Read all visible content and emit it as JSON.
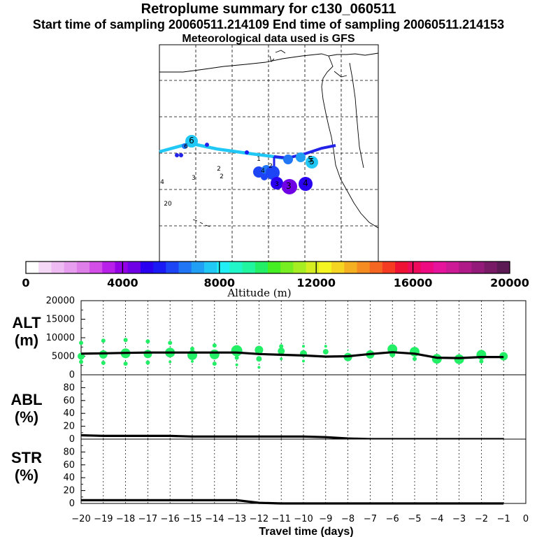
{
  "header": {
    "title": "Retroplume summary for c130_060511",
    "sampling": "Start time of sampling 20060511.214109     End time of sampling 20060511.214153",
    "met": "Meteorological data used is GFS"
  },
  "colors": {
    "curve": "#000000",
    "dots": "#22ee66",
    "track_light": "#22c8f5",
    "track_dark": "#2222e8"
  },
  "map": {
    "day_markers": [
      {
        "label": "1"
      },
      {
        "label": "2"
      },
      {
        "label": "2"
      },
      {
        "label": "3"
      },
      {
        "label": "3"
      },
      {
        "label": "4"
      },
      {
        "label": "4"
      },
      {
        "label": "5"
      },
      {
        "label": "6"
      },
      {
        "label": "6"
      },
      {
        "label": "20"
      },
      {
        "label": "4"
      },
      {
        "label": "3"
      },
      {
        "label": "2"
      },
      {
        "label": "5"
      }
    ]
  },
  "colorbar": {
    "label": "Altitude (m)",
    "ticks": [
      "0",
      "4000",
      "8000",
      "12000",
      "16000",
      "20000"
    ],
    "range": [
      0,
      20000
    ],
    "colors": [
      "#ffffff",
      "#f4d8f6",
      "#eebcf2",
      "#e79eee",
      "#de7ee9",
      "#d24ee6",
      "#b81fe8",
      "#9300e6",
      "#6f00e6",
      "#2a00f0",
      "#1a1af5",
      "#1e45f5",
      "#2076f5",
      "#219ff5",
      "#22c8f5",
      "#22eef5",
      "#22f5c8",
      "#22f5a0",
      "#22ee66",
      "#44ee22",
      "#77ee22",
      "#a6ee22",
      "#d4ee22",
      "#f5f522",
      "#f5d422",
      "#f5b022",
      "#f58c22",
      "#f56622",
      "#f53b22",
      "#ee1133",
      "#ee0a5a",
      "#ee0a80",
      "#e6139c",
      "#cc1a96",
      "#b01a88",
      "#931a78",
      "#781a66",
      "#5c1a55"
    ]
  },
  "chart_data": [
    {
      "type": "line",
      "name": "ALT",
      "ylabel_line1": "ALT",
      "ylabel_line2": "(m)",
      "ylim": [
        0,
        20000
      ],
      "yticks": [
        "0",
        "5000",
        "10000",
        "15000",
        "20000"
      ],
      "x": [
        -20,
        -19,
        -18,
        -17,
        -16,
        -15,
        -14,
        -13,
        -12,
        -11,
        -10,
        -9,
        -8,
        -7,
        -6,
        -5,
        -4,
        -3,
        -2,
        -1
      ],
      "values": [
        5700,
        5800,
        5900,
        6000,
        6000,
        6000,
        6000,
        6000,
        5600,
        5400,
        5200,
        4900,
        5000,
        5600,
        6100,
        5700,
        4600,
        4500,
        4800,
        4800
      ],
      "dots": [
        {
          "x": -20,
          "y": 5000,
          "r": 5
        },
        {
          "x": -20,
          "y": 8600,
          "r": 3
        },
        {
          "x": -20,
          "y": 3500,
          "r": 3
        },
        {
          "x": -19,
          "y": 5500,
          "r": 6
        },
        {
          "x": -19,
          "y": 9200,
          "r": 3
        },
        {
          "x": -19,
          "y": 3200,
          "r": 3
        },
        {
          "x": -18,
          "y": 5800,
          "r": 7
        },
        {
          "x": -18,
          "y": 9400,
          "r": 3
        },
        {
          "x": -18,
          "y": 3000,
          "r": 3
        },
        {
          "x": -17,
          "y": 5600,
          "r": 6
        },
        {
          "x": -17,
          "y": 9000,
          "r": 3
        },
        {
          "x": -17,
          "y": 3300,
          "r": 3
        },
        {
          "x": -16,
          "y": 6000,
          "r": 7
        },
        {
          "x": -16,
          "y": 8600,
          "r": 3
        },
        {
          "x": -16,
          "y": 3500,
          "r": 2
        },
        {
          "x": -15,
          "y": 5300,
          "r": 7
        },
        {
          "x": -15,
          "y": 7000,
          "r": 3
        },
        {
          "x": -15,
          "y": 3600,
          "r": 2
        },
        {
          "x": -14,
          "y": 5500,
          "r": 7
        },
        {
          "x": -14,
          "y": 7900,
          "r": 3
        },
        {
          "x": -14,
          "y": 3000,
          "r": 3
        },
        {
          "x": -13,
          "y": 6500,
          "r": 8
        },
        {
          "x": -13,
          "y": 4600,
          "r": 3
        },
        {
          "x": -13,
          "y": 2700,
          "r": 2
        },
        {
          "x": -12,
          "y": 6700,
          "r": 6
        },
        {
          "x": -12,
          "y": 4300,
          "r": 4
        },
        {
          "x": -12,
          "y": 2000,
          "r": 2
        },
        {
          "x": -11,
          "y": 6400,
          "r": 5
        },
        {
          "x": -11,
          "y": 7700,
          "r": 3
        },
        {
          "x": -11,
          "y": 4300,
          "r": 2
        },
        {
          "x": -10,
          "y": 5700,
          "r": 5
        },
        {
          "x": -10,
          "y": 7700,
          "r": 2
        },
        {
          "x": -10,
          "y": 3700,
          "r": 2
        },
        {
          "x": -9,
          "y": 6200,
          "r": 4
        },
        {
          "x": -9,
          "y": 7700,
          "r": 2
        },
        {
          "x": -8,
          "y": 4800,
          "r": 6
        },
        {
          "x": -8,
          "y": 6700,
          "r": 1
        },
        {
          "x": -7,
          "y": 5500,
          "r": 6
        },
        {
          "x": -6,
          "y": 6900,
          "r": 7
        },
        {
          "x": -6,
          "y": 5500,
          "r": 4
        },
        {
          "x": -5,
          "y": 6200,
          "r": 7
        },
        {
          "x": -5,
          "y": 4300,
          "r": 3
        },
        {
          "x": -4,
          "y": 4300,
          "r": 7
        },
        {
          "x": -3,
          "y": 4200,
          "r": 7
        },
        {
          "x": -2,
          "y": 5400,
          "r": 7
        },
        {
          "x": -2,
          "y": 3600,
          "r": 3
        },
        {
          "x": -1,
          "y": 5000,
          "r": 6
        }
      ]
    },
    {
      "type": "line",
      "name": "ABL",
      "ylabel_line1": "ABL",
      "ylabel_line2": "(%)",
      "ylim": [
        0,
        100
      ],
      "yticks": [
        "0",
        "20",
        "40",
        "60",
        "80"
      ],
      "x": [
        -20,
        -19,
        -18,
        -17,
        -16,
        -15,
        -14,
        -13,
        -12,
        -11,
        -10,
        -9,
        -8,
        -7,
        -6,
        -5,
        -4,
        -3,
        -2,
        -1
      ],
      "values": [
        6,
        5,
        5,
        5,
        5,
        4,
        4,
        4,
        4,
        4,
        4,
        3,
        1,
        0,
        0,
        0,
        0,
        0,
        0,
        0
      ]
    },
    {
      "type": "line",
      "name": "STR",
      "ylabel_line1": "STR",
      "ylabel_line2": "(%)",
      "ylim": [
        0,
        100
      ],
      "yticks": [
        "0",
        "20",
        "40",
        "60",
        "80"
      ],
      "x": [
        -20,
        -19,
        -18,
        -17,
        -16,
        -15,
        -14,
        -13,
        -12,
        -11,
        -10,
        -9,
        -8,
        -7,
        -6,
        -5,
        -4,
        -3,
        -2,
        -1
      ],
      "values": [
        5,
        5,
        5,
        5,
        5,
        5,
        5,
        5,
        1,
        0,
        0,
        0,
        0,
        0,
        0,
        0,
        0,
        0,
        0,
        0
      ]
    }
  ],
  "xaxis": {
    "label": "Travel time (days)",
    "ticks": [
      "−20",
      "−19",
      "−18",
      "−17",
      "−16",
      "−15",
      "−14",
      "−13",
      "−12",
      "−11",
      "−10",
      "−9",
      "−8",
      "−7",
      "−6",
      "−5",
      "−4",
      "−3",
      "−2",
      "−1",
      "0"
    ],
    "range": [
      -20,
      0
    ]
  }
}
